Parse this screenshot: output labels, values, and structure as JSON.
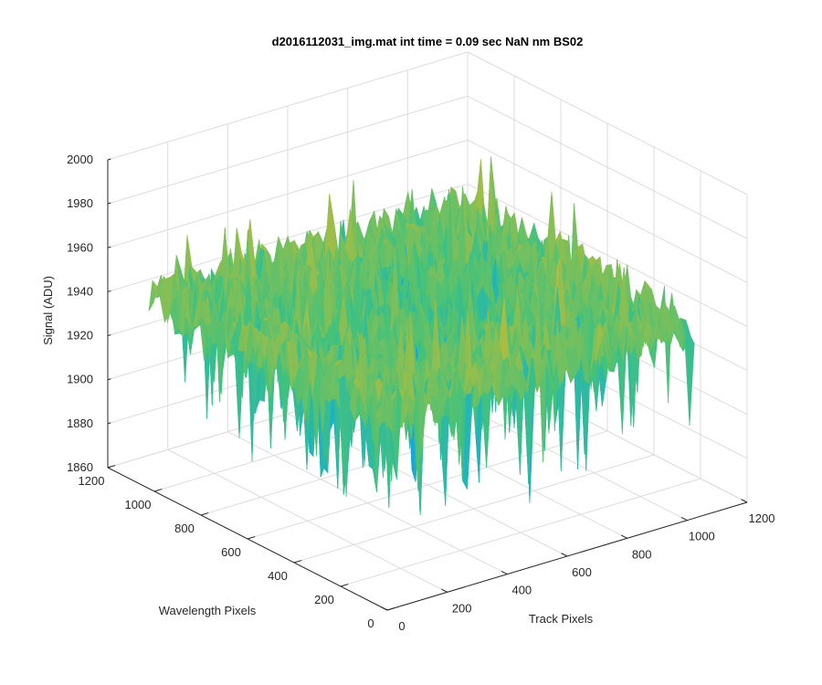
{
  "chart_data": {
    "type": "surface",
    "title": "d2016112031_img.mat int time = 0.09 sec  NaN nm BS02",
    "zlabel": "Signal (ADU)",
    "xlabel": "Track Pixels",
    "ylabel": "Wavelength Pixels",
    "x_ticks": [
      "0",
      "200",
      "400",
      "600",
      "800",
      "1000",
      "1200"
    ],
    "y_ticks": [
      "0",
      "200",
      "400",
      "600",
      "800",
      "1000",
      "1200"
    ],
    "z_ticks": [
      "1860",
      "1880",
      "1900",
      "1920",
      "1940",
      "1960",
      "1980",
      "2000"
    ],
    "xlim": [
      0,
      1200
    ],
    "ylim": [
      0,
      1200
    ],
    "zlim": [
      1860,
      2000
    ],
    "grid": true,
    "surface": {
      "extent_x": [
        0,
        1024
      ],
      "extent_y": [
        0,
        1024
      ],
      "mean_signal": 1940,
      "noise_amplitude": 20,
      "min_signal": 1870,
      "max_signal": 1985,
      "colormap": [
        "#3e26a8",
        "#2f76ef",
        "#12aed8",
        "#44c27a",
        "#b8bc39",
        "#f7cc2d"
      ],
      "edge_rise": 8
    }
  }
}
